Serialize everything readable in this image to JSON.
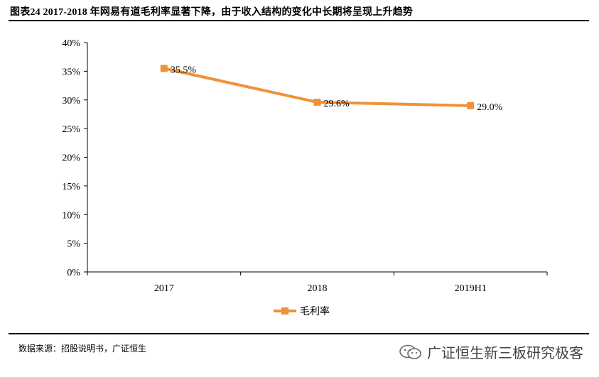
{
  "figure": {
    "title": "图表24 2017-2018 年网易有道毛利率显著下降，由于收入结构的变化中长期将呈现上升趋势",
    "source": "数据来源：招股说明书，广证恒生",
    "watermark": "广证恒生新三板研究极客",
    "watermark_icon": "wechat-icon"
  },
  "colors": {
    "series": "#F0923A",
    "axis": "#000000"
  },
  "chart_data": {
    "type": "line",
    "categories": [
      "2017",
      "2018",
      "2019H1"
    ],
    "series": [
      {
        "name": "毛利率",
        "values": [
          35.5,
          29.6,
          29.0
        ],
        "labels": [
          "35.5%",
          "29.6%",
          "29.0%"
        ]
      }
    ],
    "ylim": [
      0,
      40
    ],
    "yticks": [
      "0%",
      "5%",
      "10%",
      "15%",
      "20%",
      "25%",
      "30%",
      "35%",
      "40%"
    ],
    "grid": false,
    "legend": "bottom-center",
    "marker": "square"
  }
}
